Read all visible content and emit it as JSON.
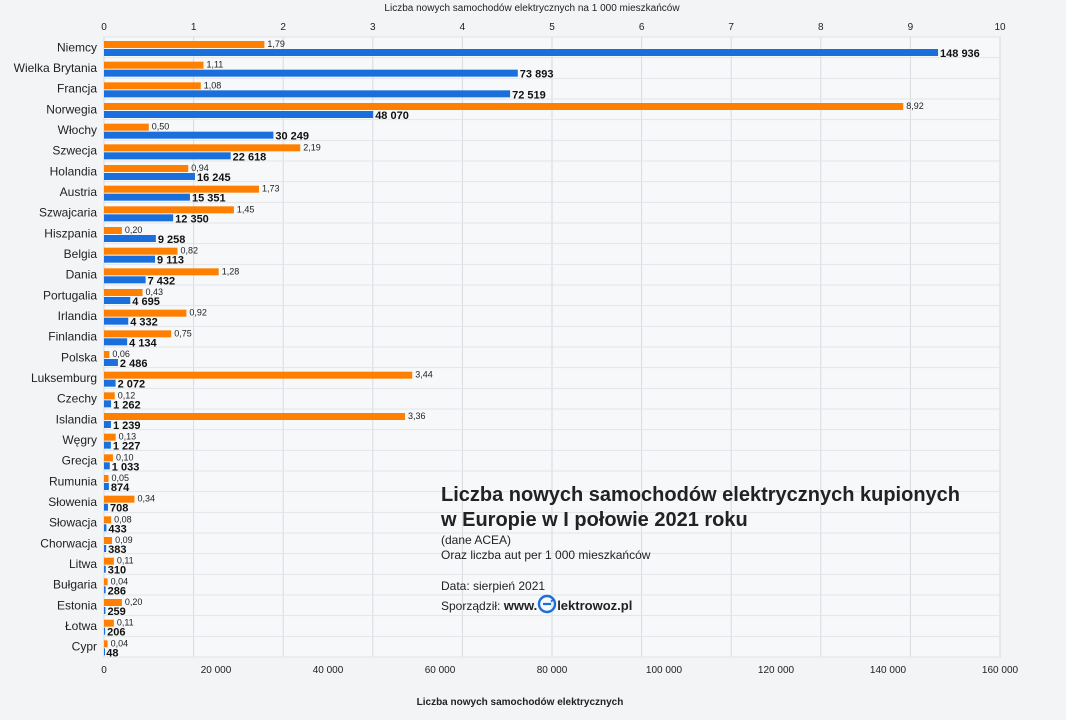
{
  "chart_data": {
    "type": "bar",
    "orientation": "horizontal",
    "categories": [
      "Niemcy",
      "Wielka Brytania",
      "Francja",
      "Norwegia",
      "Włochy",
      "Szwecja",
      "Holandia",
      "Austria",
      "Szwajcaria",
      "Hiszpania",
      "Belgia",
      "Dania",
      "Portugalia",
      "Irlandia",
      "Finlandia",
      "Polska",
      "Luksemburg",
      "Czechy",
      "Islandia",
      "Węgry",
      "Grecja",
      "Rumunia",
      "Słowenia",
      "Słowacja",
      "Chorwacja",
      "Litwa",
      "Bułgaria",
      "Estonia",
      "Łotwa",
      "Cypr"
    ],
    "series": [
      {
        "axis": "top",
        "color": "#ff8000",
        "values": [
          1.79,
          1.11,
          1.08,
          8.92,
          0.5,
          2.19,
          0.94,
          1.73,
          1.45,
          0.2,
          0.82,
          1.28,
          0.43,
          0.92,
          0.75,
          0.06,
          3.44,
          0.12,
          3.36,
          0.13,
          0.1,
          0.05,
          0.34,
          0.08,
          0.09,
          0.11,
          0.04,
          0.2,
          0.11,
          0.04
        ],
        "labels": [
          "1,79",
          "1,11",
          "1,08",
          "8,92",
          "0,50",
          "2,19",
          "0,94",
          "1,73",
          "1,45",
          "0,20",
          "0,82",
          "1,28",
          "0,43",
          "0,92",
          "0,75",
          "0,06",
          "3,44",
          "0,12",
          "3,36",
          "0,13",
          "0,10",
          "0,05",
          "0,34",
          "0,08",
          "0,09",
          "0,11",
          "0,04",
          "0,20",
          "0,11",
          "0,04"
        ]
      },
      {
        "axis": "bottom",
        "color": "#1a6fdc",
        "values": [
          148936,
          73893,
          72519,
          48070,
          30249,
          22618,
          16245,
          15351,
          12350,
          9258,
          9113,
          7432,
          4695,
          4332,
          4134,
          2486,
          2072,
          1262,
          1239,
          1227,
          1033,
          874,
          708,
          433,
          383,
          310,
          286,
          259,
          206,
          48
        ],
        "labels": [
          "148 936",
          "73 893",
          "72 519",
          "48 070",
          "30 249",
          "22 618",
          "16 245",
          "15 351",
          "12 350",
          "9 258",
          "9 113",
          "7 432",
          "4 695",
          "4 332",
          "4 134",
          "2 486",
          "2 072",
          "1 262",
          "1 239",
          "1 227",
          "1 033",
          "874",
          "708",
          "433",
          "383",
          "310",
          "286",
          "259",
          "206",
          "48"
        ]
      }
    ],
    "top_axis": {
      "title": "Liczba nowych samochodów elektrycznych na 1 000 mieszkańców",
      "ticks": [
        "0",
        "1",
        "2",
        "3",
        "4",
        "5",
        "6",
        "7",
        "8",
        "9",
        "10"
      ],
      "range": [
        0,
        10
      ]
    },
    "bottom_axis": {
      "title": "Liczba nowych samochodów elektrycznych",
      "ticks": [
        "0",
        "20 000",
        "40 000",
        "60 000",
        "80 000",
        "100 000",
        "120 000",
        "140 000",
        "160 000"
      ],
      "range": [
        0,
        160000
      ]
    },
    "grid": true
  },
  "info": {
    "title_line1": "Liczba nowych samochodów elektrycznych kupionych",
    "title_line2": "w Europie w I połowie 2021 roku",
    "source": "(dane ACEA)",
    "subtitle": "Oraz liczba aut per 1 000 mieszkańców",
    "date": "Data: sierpień 2021",
    "author_prefix": "Sporządził:",
    "brand_prefix": "www.",
    "brand_suffix": "lektrowoz.pl",
    "logo_icon": "plug-circle-icon"
  }
}
